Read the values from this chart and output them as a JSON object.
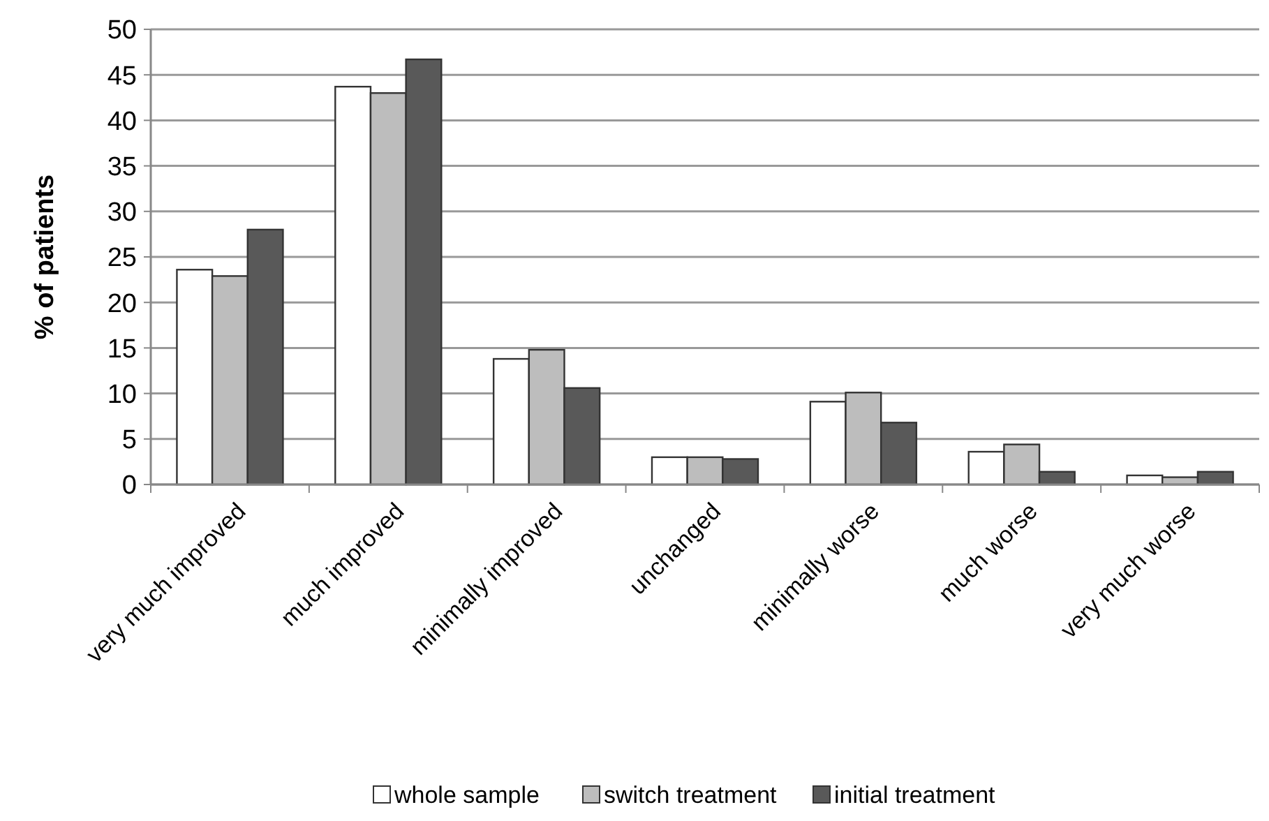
{
  "chart_data": {
    "type": "bar",
    "ylabel": "% of patients",
    "categories": [
      "very much improved",
      "much improved",
      "minimally improved",
      "unchanged",
      "minimally worse",
      "much worse",
      "very much worse"
    ],
    "series": [
      {
        "name": "whole sample",
        "color": "#ffffff",
        "values": [
          23.6,
          43.7,
          13.8,
          3,
          9.1,
          3.6,
          1
        ]
      },
      {
        "name": "switch treatment",
        "color": "#bdbdbd",
        "values": [
          22.9,
          43,
          14.8,
          3,
          10.1,
          4.4,
          0.8
        ]
      },
      {
        "name": "initial treatment",
        "color": "#595959",
        "values": [
          28,
          46.7,
          10.6,
          2.8,
          6.8,
          1.4,
          1.4
        ]
      }
    ],
    "ylim": [
      0,
      50
    ],
    "yticks": [
      0,
      5,
      10,
      15,
      20,
      25,
      30,
      35,
      40,
      45,
      50
    ],
    "grid": "y",
    "legend": "bottom"
  }
}
